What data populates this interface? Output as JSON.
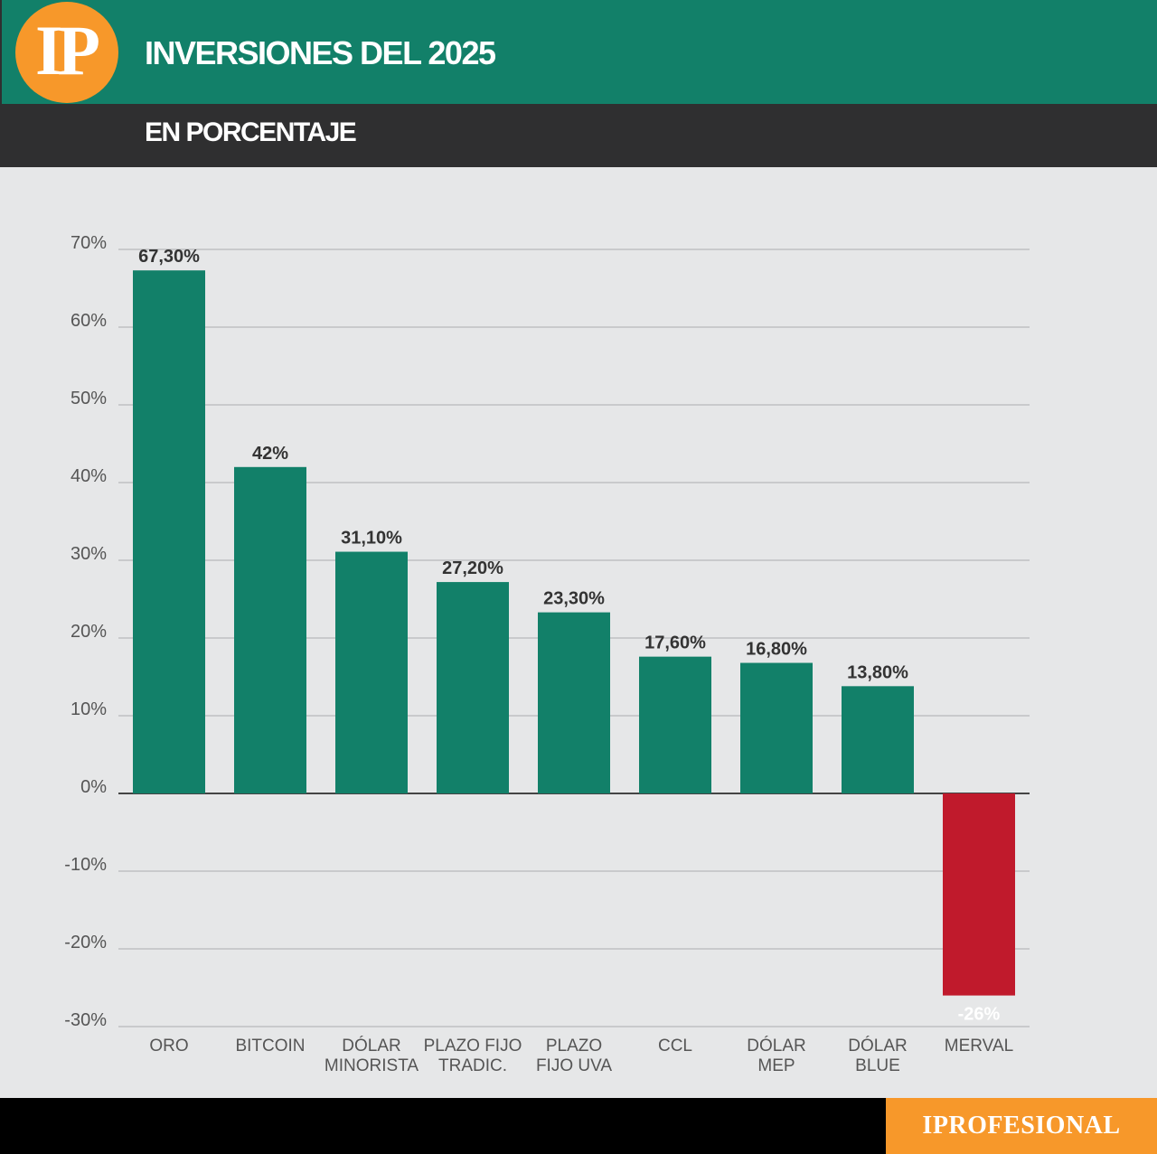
{
  "header": {
    "logo_text": "IP",
    "title": "INVERSIONES DEL 2025",
    "subtitle": "EN PORCENTAJE"
  },
  "footer": {
    "brand": "IPROFESIONAL"
  },
  "colors": {
    "positive": "#128069",
    "negative": "#c01a2c",
    "header_green": "#128069",
    "header_dark": "#2f2f30",
    "accent_orange": "#f7982a",
    "background": "#e6e7e8",
    "grid": "#b8b9bb"
  },
  "chart_data": {
    "type": "bar",
    "title": "INVERSIONES DEL 2025",
    "subtitle": "EN PORCENTAJE",
    "xlabel": "",
    "ylabel": "",
    "ylim": [
      -30,
      70
    ],
    "y_ticks": [
      70,
      60,
      50,
      40,
      30,
      20,
      10,
      0,
      -10,
      -20,
      -30
    ],
    "y_tick_labels": [
      "70%",
      "60%",
      "50%",
      "40%",
      "30%",
      "20%",
      "10%",
      "0%",
      "-10%",
      "-20%",
      "-30%"
    ],
    "grid": true,
    "legend": "none",
    "categories": [
      [
        "ORO"
      ],
      [
        "BITCOIN"
      ],
      [
        "DÓLAR",
        "MINORISTA"
      ],
      [
        "PLAZO FIJO",
        "TRADIC."
      ],
      [
        "PLAZO",
        "FIJO UVA"
      ],
      [
        "CCL"
      ],
      [
        "DÓLAR",
        "MEP"
      ],
      [
        "DÓLAR",
        "BLUE"
      ],
      [
        "MERVAL"
      ]
    ],
    "values": [
      67.3,
      42,
      31.1,
      27.2,
      23.3,
      17.6,
      16.8,
      13.8,
      -26
    ],
    "value_labels": [
      "67,30%",
      "42%",
      "31,10%",
      "27,20%",
      "23,30%",
      "17,60%",
      "16,80%",
      "13,80%",
      "-26%"
    ]
  }
}
